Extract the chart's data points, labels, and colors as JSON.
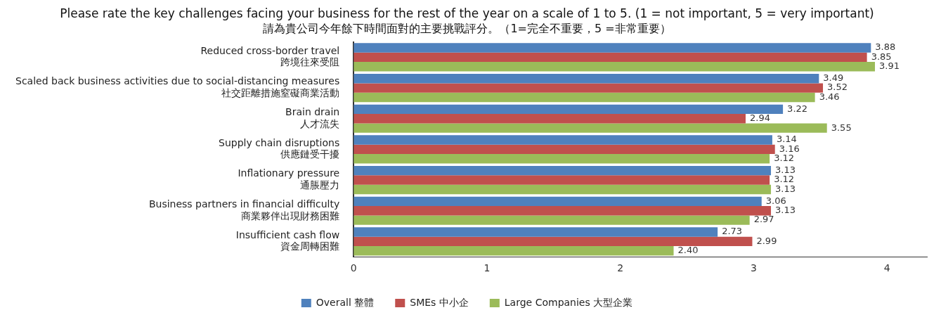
{
  "chart_data": {
    "type": "bar",
    "orientation": "horizontal",
    "title": "Please rate the key challenges facing your business for the rest of the year on a scale of 1 to 5. (1 = not important, 5 = very important)",
    "subtitle": "請為貴公司今年餘下時間面對的主要挑戰評分。（1=完全不重要，5 =非常重要）",
    "categories": [
      "Reduced cross-border travel\n跨境往來受阻",
      "Scaled back business activities due to social-distancing measures\n社交距離措施窒礙商業活動",
      "Brain drain\n人才流失",
      "Supply chain disruptions\n供應鏈受干擾",
      "Inflationary pressure\n通脹壓力",
      "Business partners in financial difficulty\n商業夥伴出現財務困難",
      "Insufficient cash flow\n資金周轉困難"
    ],
    "series": [
      {
        "name": "Overall 整體",
        "color": "#4f81bd",
        "values": [
          3.88,
          3.49,
          3.22,
          3.14,
          3.13,
          3.06,
          2.73
        ]
      },
      {
        "name": "SMEs 中小企",
        "color": "#c0504d",
        "values": [
          3.85,
          3.52,
          2.94,
          3.16,
          3.12,
          3.13,
          2.99
        ]
      },
      {
        "name": "Large Companies 大型企業",
        "color": "#9bbb59",
        "values": [
          3.91,
          3.46,
          3.55,
          3.12,
          3.13,
          2.97,
          2.4
        ],
        "value_labels": [
          "3.91",
          "3.46",
          "3.55",
          "3.12",
          "3.13",
          "2.97",
          "2.40"
        ]
      }
    ],
    "xlim": [
      0,
      4.3
    ],
    "xticks": [
      0,
      1,
      2,
      3,
      4
    ],
    "grid": false,
    "legend": "bottom",
    "data_labels": true
  }
}
